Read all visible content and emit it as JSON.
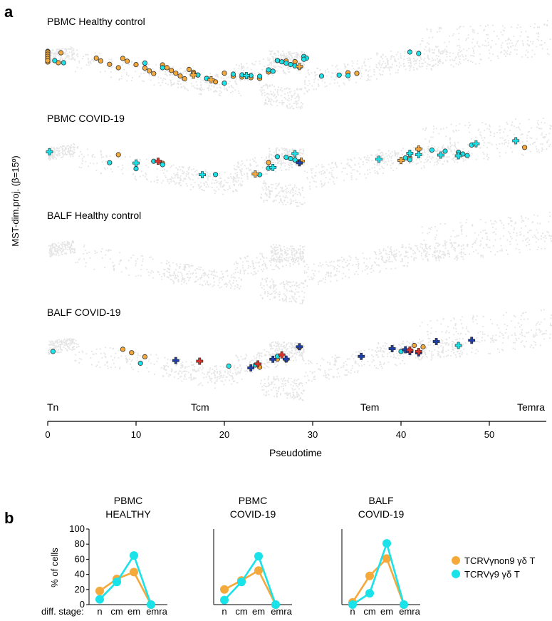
{
  "panel_a": {
    "letter": "a",
    "ylabel": "MST-dim.proj. (β=15º)",
    "xlabel": "Pseudotime",
    "x_ticks": [
      "0",
      "10",
      "20",
      "30",
      "40",
      "50"
    ],
    "stage_labels": [
      "Tn",
      "Tcm",
      "Tem",
      "Temra"
    ],
    "rows": [
      {
        "title": "PBMC Healthy control"
      },
      {
        "title": "PBMC COVID-19"
      },
      {
        "title": "BALF Healthy control"
      },
      {
        "title": "BALF COVID-19"
      }
    ]
  },
  "panel_b": {
    "letter": "b",
    "ylabel": "% of cells",
    "stage_caption": "diff. stage:",
    "legend": [
      "TCRVγnon9 γδ T",
      "TCRVγ9 γδ T"
    ]
  },
  "colors": {
    "orange": "#f5a93a",
    "cyan": "#19e2e8",
    "blue": "#1f3fa8",
    "red": "#d8322a",
    "background_cells": "#e4e4e4"
  },
  "chart_data": [
    {
      "type": "scatter",
      "title": "PBMC Healthy control",
      "xlabel": "Pseudotime",
      "ylabel": "MST-dim.proj. (β=15º)",
      "xlim": [
        0,
        56
      ],
      "series": [
        {
          "name": "TCRVγnon9 γδ T",
          "color": "orange",
          "marker": "circle",
          "x": [
            0,
            0,
            0,
            0,
            0,
            0,
            0,
            0,
            0,
            0,
            0,
            1.2,
            1.5,
            5.5,
            6,
            7,
            8,
            8.5,
            9,
            10,
            11,
            11.5,
            12,
            13,
            13.5,
            14,
            14.5,
            15,
            15.5,
            16,
            16.5,
            17,
            18,
            19,
            20,
            21,
            22,
            23,
            24,
            25,
            26,
            27,
            28,
            34,
            35
          ]
        },
        {
          "name": "TCRVγ9 γδ T",
          "color": "cyan",
          "marker": "circle",
          "x": [
            0.8,
            1.8,
            11,
            13,
            17,
            18,
            20,
            21,
            22,
            23,
            24,
            25,
            25.5,
            26,
            26.5,
            27,
            27.5,
            28,
            28.5,
            29,
            29.3,
            31,
            33,
            34,
            41,
            42,
            29
          ]
        },
        {
          "name": "TCRVγnon9 γδ T",
          "color": "orange",
          "marker": "plus",
          "x": [
            16.5,
            18.5,
            28.5
          ]
        },
        {
          "name": "TCRVγ9 γδ T",
          "color": "cyan",
          "marker": "plus",
          "x": [
            22.5
          ]
        }
      ]
    },
    {
      "type": "scatter",
      "title": "PBMC COVID-19",
      "xlim": [
        0,
        56
      ],
      "series": [
        {
          "name": "TCRVγnon9 γδ T",
          "color": "orange",
          "marker": "circle",
          "x": [
            8,
            13,
            25,
            28,
            41,
            54
          ]
        },
        {
          "name": "TCRVγ9 γδ T",
          "color": "cyan",
          "marker": "circle",
          "x": [
            7,
            10,
            12,
            13,
            19,
            24,
            25,
            26,
            27,
            27.5,
            28,
            40.5,
            41,
            42,
            43.5,
            45,
            46.5,
            47,
            47.5,
            48
          ]
        },
        {
          "name": "TCRVγnon9 γδ T",
          "color": "orange",
          "marker": "plus",
          "x": [
            23.5,
            28.7,
            40,
            42
          ]
        },
        {
          "name": "TCRVγ9 γδ T",
          "color": "cyan",
          "marker": "plus",
          "x": [
            0.2,
            10,
            17.5,
            25.5,
            28,
            37.5,
            41,
            42,
            44.5,
            46.5,
            48.5,
            53
          ]
        },
        {
          "name": "TCRVγ9 γδ T (highlight)",
          "color": "red",
          "marker": "plus",
          "x": [
            12.5
          ]
        },
        {
          "name": "TCRVγ9 γδ T (highlight)",
          "color": "blue",
          "marker": "plus",
          "x": [
            28.5
          ]
        }
      ]
    },
    {
      "type": "scatter",
      "title": "BALF Healthy control",
      "xlim": [
        0,
        56
      ],
      "series": []
    },
    {
      "type": "scatter",
      "title": "BALF COVID-19",
      "xlim": [
        0,
        56
      ],
      "series": [
        {
          "name": "TCRVγnon9 γδ T",
          "color": "orange",
          "marker": "circle",
          "x": [
            8.5,
            9.5,
            11,
            24,
            26,
            27,
            28.5,
            41.5,
            42.5
          ]
        },
        {
          "name": "TCRVγ9 γδ T",
          "color": "cyan",
          "marker": "circle",
          "x": [
            0.6,
            10.5,
            20.5,
            23.5,
            26,
            40
          ]
        },
        {
          "name": "TCRVγ9 γδ T",
          "color": "cyan",
          "marker": "plus",
          "x": [
            46.5
          ]
        },
        {
          "name": "TCRVγ9 γδ T (highlight)",
          "color": "blue",
          "marker": "plus",
          "x": [
            14.5,
            23,
            25.5,
            27,
            28.5,
            35.5,
            39,
            40.5,
            41,
            42,
            44,
            48
          ]
        },
        {
          "name": "TCRVγ9 γδ T (highlight)",
          "color": "red",
          "marker": "plus",
          "x": [
            17.2,
            23.8,
            26.5,
            41,
            42
          ]
        }
      ]
    },
    {
      "type": "line",
      "title": "PBMC HEALTHY",
      "categories": [
        "n",
        "cm",
        "em",
        "emra"
      ],
      "ylabel": "% of cells",
      "ylim": [
        0,
        100
      ],
      "yticks": [
        "0",
        "20",
        "40",
        "60",
        "80",
        "100"
      ],
      "series": [
        {
          "name": "TCRVγnon9 γδ T",
          "color": "orange",
          "values": [
            18,
            34,
            43,
            0
          ]
        },
        {
          "name": "TCRVγ9 γδ T",
          "color": "cyan",
          "values": [
            7,
            30,
            65,
            0
          ]
        }
      ]
    },
    {
      "type": "line",
      "title": "PBMC COVID-19",
      "categories": [
        "n",
        "cm",
        "em",
        "emra"
      ],
      "ylim": [
        0,
        100
      ],
      "series": [
        {
          "name": "TCRVγnon9 γδ T",
          "color": "orange",
          "values": [
            20,
            32,
            45,
            0
          ]
        },
        {
          "name": "TCRVγ9 γδ T",
          "color": "cyan",
          "values": [
            6,
            30,
            64,
            0
          ]
        }
      ]
    },
    {
      "type": "line",
      "title": "BALF COVID-19",
      "categories": [
        "n",
        "cm",
        "em",
        "emra"
      ],
      "ylim": [
        0,
        100
      ],
      "series": [
        {
          "name": "TCRVγnon9 γδ T",
          "color": "orange",
          "values": [
            3,
            38,
            61,
            0
          ]
        },
        {
          "name": "TCRVγ9 γδ T",
          "color": "cyan",
          "values": [
            0,
            15,
            81,
            0
          ]
        }
      ]
    }
  ],
  "panel_b_titles": [
    [
      "PBMC",
      "HEALTHY"
    ],
    [
      "PBMC",
      "COVID-19"
    ],
    [
      "BALF",
      "COVID-19"
    ]
  ]
}
